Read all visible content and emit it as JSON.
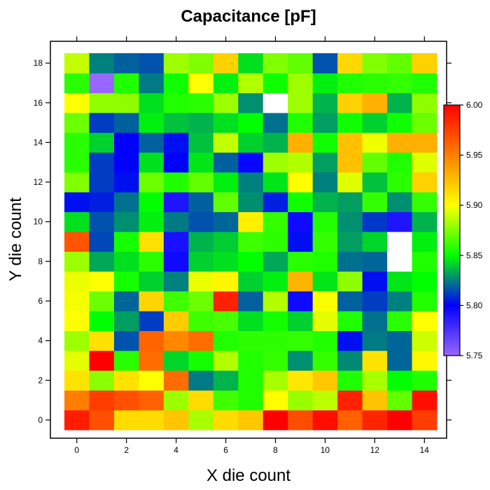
{
  "chart_data": {
    "type": "heatmap",
    "title": "Capacitance [pF]",
    "xlabel": "X die count",
    "ylabel": "Y die count",
    "x": [
      0,
      1,
      2,
      3,
      4,
      5,
      6,
      7,
      8,
      9,
      10,
      11,
      12,
      13,
      14
    ],
    "y": [
      0,
      1,
      2,
      3,
      4,
      5,
      6,
      7,
      8,
      9,
      10,
      11,
      12,
      13,
      14,
      15,
      16,
      17,
      18
    ],
    "xticks": [
      0,
      2,
      4,
      6,
      8,
      10,
      12,
      14
    ],
    "yticks": [
      0,
      2,
      4,
      6,
      8,
      10,
      12,
      14,
      16,
      18
    ],
    "colorbar": {
      "range": [
        5.75,
        6.0
      ],
      "ticks": [
        "5.75",
        "5.80",
        "5.85",
        "5.90",
        "5.95",
        "6.00"
      ],
      "stops": [
        {
          "value": 5.75,
          "color": "#9966ff"
        },
        {
          "value": 5.8,
          "color": "#0000ff"
        },
        {
          "value": 5.85,
          "color": "#00ff00"
        },
        {
          "value": 5.9,
          "color": "#ffff00"
        },
        {
          "value": 5.95,
          "color": "#ff8000"
        },
        {
          "value": 6.0,
          "color": "#ff0000"
        }
      ]
    },
    "values_by_row_y0_to_y18": [
      [
        5.989,
        5.969,
        5.914,
        5.914,
        5.923,
        5.883,
        5.914,
        5.922,
        6.0,
        5.97,
        5.995,
        5.962,
        5.986,
        6.0,
        5.976
      ],
      [
        5.951,
        5.976,
        5.969,
        5.962,
        5.881,
        5.914,
        5.862,
        5.856,
        5.9,
        5.88,
        5.887,
        5.987,
        5.923,
        5.869,
        5.994
      ],
      [
        5.911,
        5.877,
        5.911,
        5.9,
        5.958,
        5.824,
        5.835,
        5.856,
        5.883,
        5.909,
        5.922,
        5.856,
        5.883,
        5.85,
        5.856
      ],
      [
        5.895,
        6.0,
        5.858,
        5.958,
        5.842,
        5.854,
        5.885,
        5.856,
        5.86,
        5.828,
        5.86,
        5.827,
        5.911,
        5.82,
        5.903
      ],
      [
        5.881,
        5.912,
        5.816,
        5.961,
        5.947,
        5.958,
        5.856,
        5.859,
        5.859,
        5.86,
        5.856,
        5.803,
        5.824,
        5.82,
        5.89
      ],
      [
        5.9,
        5.85,
        5.831,
        5.812,
        5.92,
        5.862,
        5.864,
        5.844,
        5.854,
        5.841,
        5.895,
        5.856,
        5.822,
        5.858,
        5.9
      ],
      [
        5.898,
        5.871,
        5.82,
        5.917,
        5.862,
        5.871,
        5.987,
        5.819,
        5.885,
        5.795,
        5.899,
        5.819,
        5.812,
        5.825,
        5.856
      ],
      [
        5.896,
        5.9,
        5.854,
        5.841,
        5.825,
        5.896,
        5.903,
        5.841,
        5.847,
        5.929,
        5.845,
        5.878,
        5.803,
        5.845,
        5.85
      ],
      [
        5.881,
        5.833,
        5.844,
        5.858,
        5.795,
        5.841,
        5.844,
        5.85,
        5.833,
        5.858,
        5.856,
        5.822,
        5.82,
        null,
        5.856
      ],
      [
        5.967,
        5.814,
        5.854,
        5.912,
        5.792,
        5.835,
        5.84,
        5.862,
        5.859,
        5.803,
        5.86,
        5.831,
        5.842,
        null,
        5.847
      ],
      [
        5.844,
        5.816,
        5.828,
        5.847,
        5.824,
        5.816,
        5.82,
        5.906,
        5.86,
        5.795,
        5.856,
        5.828,
        5.811,
        5.79,
        5.835
      ],
      [
        5.803,
        5.806,
        5.822,
        5.85,
        5.79,
        5.819,
        5.869,
        5.828,
        5.806,
        5.853,
        5.835,
        5.831,
        5.86,
        5.828,
        5.86
      ],
      [
        5.875,
        5.812,
        5.803,
        5.871,
        5.856,
        5.869,
        5.847,
        5.825,
        5.845,
        5.9,
        5.825,
        5.894,
        5.838,
        5.858,
        5.918
      ],
      [
        5.858,
        5.812,
        5.8,
        5.844,
        5.8,
        5.845,
        5.819,
        5.797,
        5.881,
        5.885,
        5.831,
        5.925,
        5.869,
        5.856,
        5.894
      ],
      [
        5.858,
        5.841,
        5.8,
        5.819,
        5.803,
        5.838,
        5.888,
        5.841,
        5.835,
        5.931,
        5.853,
        5.925,
        5.897,
        5.931,
        5.931
      ],
      [
        5.871,
        5.812,
        5.819,
        5.847,
        5.838,
        5.835,
        5.844,
        5.85,
        5.822,
        5.856,
        5.831,
        5.853,
        5.841,
        5.853,
        5.871
      ],
      [
        5.9,
        5.878,
        5.878,
        5.844,
        5.856,
        5.858,
        5.881,
        5.828,
        null,
        5.881,
        5.835,
        5.918,
        5.931,
        5.835,
        5.878
      ],
      [
        5.858,
        5.75,
        5.856,
        5.824,
        5.853,
        5.9,
        5.847,
        5.885,
        5.853,
        5.881,
        5.847,
        5.856,
        5.858,
        5.86,
        5.856
      ],
      [
        5.888,
        5.825,
        5.819,
        5.816,
        5.881,
        5.875,
        5.918,
        5.844,
        5.875,
        5.869,
        5.816,
        5.915,
        5.875,
        5.869,
        5.918
      ]
    ]
  }
}
